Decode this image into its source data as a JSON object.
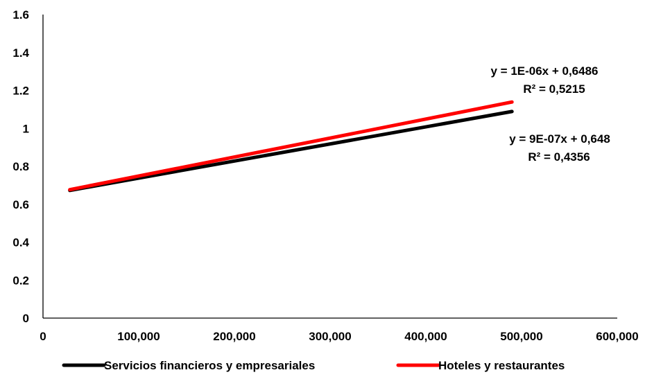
{
  "chart_data": {
    "type": "line",
    "title": "",
    "xlabel": "",
    "ylabel": "",
    "xlim": [
      0,
      600000
    ],
    "ylim": [
      0,
      1.6
    ],
    "x_ticks": [
      0,
      100000,
      200000,
      300000,
      400000,
      500000,
      600000
    ],
    "x_tick_labels": [
      "0",
      "100,000",
      "200,000",
      "300,000",
      "400,000",
      "500,000",
      "600,000"
    ],
    "y_ticks": [
      0,
      0.2,
      0.4,
      0.6,
      0.8,
      1,
      1.2,
      1.4,
      1.6
    ],
    "y_tick_labels": [
      "0",
      "0.2",
      "0.4",
      "0.6",
      "0.8",
      "1",
      "1.2",
      "1.4",
      "1.6"
    ],
    "grid": false,
    "legend_position": "bottom",
    "series": [
      {
        "name": "Servicios financieros y empresariales",
        "color": "#000000",
        "x": [
          28000,
          490000
        ],
        "y": [
          0.673,
          1.089
        ],
        "equation": "y = 9E-07x + 0,648",
        "r2": "R² = 0,4356"
      },
      {
        "name": "Hoteles y restaurantes",
        "color": "#ff0000",
        "x": [
          28000,
          490000
        ],
        "y": [
          0.677,
          1.139
        ],
        "equation": "y = 1E-06x + 0,6486",
        "r2": "R² = 0,5215"
      }
    ]
  }
}
